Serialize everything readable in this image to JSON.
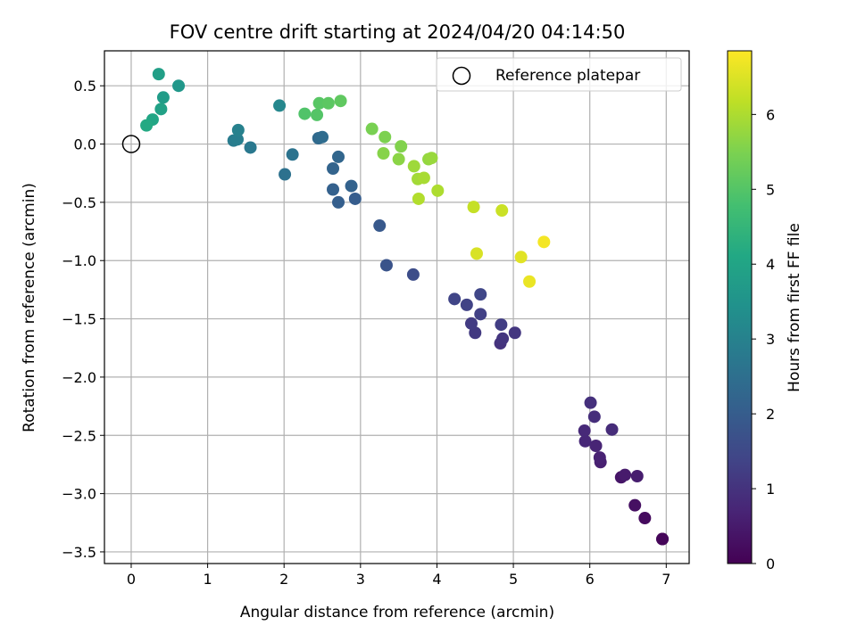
{
  "chart_data": {
    "type": "scatter",
    "title": "FOV centre drift starting at 2024/04/20 04:14:50",
    "xlabel": "Angular distance from reference (arcmin)",
    "ylabel": "Rotation from reference (arcmin)",
    "xlim": [
      -0.35,
      7.3
    ],
    "ylim": [
      -3.6,
      0.8
    ],
    "xticks": [
      0,
      1,
      2,
      3,
      4,
      5,
      6,
      7
    ],
    "yticks": [
      -3.5,
      -3.0,
      -2.5,
      -2.0,
      -1.5,
      -1.0,
      -0.5,
      0.0,
      0.5
    ],
    "grid": true,
    "legend": {
      "position": "top-right",
      "entries": [
        "Reference platepar"
      ]
    },
    "reference_point": {
      "x": 0,
      "y": 0,
      "label": "Reference platepar"
    },
    "colorbar": {
      "label": "Hours from first FF file",
      "range": [
        0,
        6.85
      ],
      "ticks": [
        0,
        1,
        2,
        3,
        4,
        5,
        6
      ],
      "colormap": "viridis"
    },
    "points": [
      {
        "x": 6.95,
        "y": -3.39,
        "h": 0.05
      },
      {
        "x": 6.95,
        "y": -3.39,
        "h": 0.1
      },
      {
        "x": 6.72,
        "y": -3.21,
        "h": 0.2
      },
      {
        "x": 6.59,
        "y": -3.1,
        "h": 0.3
      },
      {
        "x": 6.41,
        "y": -2.86,
        "h": 0.4
      },
      {
        "x": 6.46,
        "y": -2.84,
        "h": 0.5
      },
      {
        "x": 6.62,
        "y": -2.85,
        "h": 0.55
      },
      {
        "x": 6.14,
        "y": -2.73,
        "h": 0.6
      },
      {
        "x": 6.13,
        "y": -2.69,
        "h": 0.65
      },
      {
        "x": 6.08,
        "y": -2.59,
        "h": 0.7
      },
      {
        "x": 5.94,
        "y": -2.55,
        "h": 0.75
      },
      {
        "x": 5.93,
        "y": -2.46,
        "h": 0.8
      },
      {
        "x": 6.29,
        "y": -2.45,
        "h": 0.85
      },
      {
        "x": 6.06,
        "y": -2.34,
        "h": 0.9
      },
      {
        "x": 6.01,
        "y": -2.22,
        "h": 0.95
      },
      {
        "x": 4.83,
        "y": -1.71,
        "h": 1.0
      },
      {
        "x": 4.86,
        "y": -1.67,
        "h": 1.05
      },
      {
        "x": 5.02,
        "y": -1.62,
        "h": 1.1
      },
      {
        "x": 4.5,
        "y": -1.62,
        "h": 1.15
      },
      {
        "x": 4.45,
        "y": -1.54,
        "h": 1.2
      },
      {
        "x": 4.84,
        "y": -1.55,
        "h": 1.25
      },
      {
        "x": 4.57,
        "y": -1.46,
        "h": 1.3
      },
      {
        "x": 4.39,
        "y": -1.38,
        "h": 1.35
      },
      {
        "x": 4.23,
        "y": -1.33,
        "h": 1.4
      },
      {
        "x": 4.57,
        "y": -1.29,
        "h": 1.45
      },
      {
        "x": 3.69,
        "y": -1.12,
        "h": 1.6
      },
      {
        "x": 3.34,
        "y": -1.04,
        "h": 1.75
      },
      {
        "x": 3.25,
        "y": -0.7,
        "h": 1.9
      },
      {
        "x": 2.93,
        "y": -0.47,
        "h": 2.0
      },
      {
        "x": 2.71,
        "y": -0.5,
        "h": 2.05
      },
      {
        "x": 2.64,
        "y": -0.39,
        "h": 2.1
      },
      {
        "x": 2.88,
        "y": -0.36,
        "h": 2.15
      },
      {
        "x": 2.64,
        "y": -0.21,
        "h": 2.2
      },
      {
        "x": 2.71,
        "y": -0.11,
        "h": 2.25
      },
      {
        "x": 2.45,
        "y": 0.05,
        "h": 2.35
      },
      {
        "x": 2.5,
        "y": 0.06,
        "h": 2.4
      },
      {
        "x": 2.01,
        "y": -0.26,
        "h": 2.55
      },
      {
        "x": 2.11,
        "y": -0.09,
        "h": 2.6
      },
      {
        "x": 1.56,
        "y": -0.03,
        "h": 2.75
      },
      {
        "x": 1.34,
        "y": 0.03,
        "h": 2.85
      },
      {
        "x": 1.39,
        "y": 0.04,
        "h": 2.9
      },
      {
        "x": 1.4,
        "y": 0.12,
        "h": 3.0
      },
      {
        "x": 1.94,
        "y": 0.33,
        "h": 3.15
      },
      {
        "x": 0.62,
        "y": 0.5,
        "h": 3.6
      },
      {
        "x": 0.42,
        "y": 0.4,
        "h": 3.75
      },
      {
        "x": 0.36,
        "y": 0.6,
        "h": 3.85
      },
      {
        "x": 0.39,
        "y": 0.3,
        "h": 3.9
      },
      {
        "x": 0.28,
        "y": 0.21,
        "h": 4.05
      },
      {
        "x": 0.2,
        "y": 0.16,
        "h": 4.15
      },
      {
        "x": 2.27,
        "y": 0.26,
        "h": 4.95
      },
      {
        "x": 2.43,
        "y": 0.25,
        "h": 5.0
      },
      {
        "x": 2.46,
        "y": 0.35,
        "h": 5.05
      },
      {
        "x": 2.58,
        "y": 0.35,
        "h": 5.1
      },
      {
        "x": 2.74,
        "y": 0.37,
        "h": 5.15
      },
      {
        "x": 3.15,
        "y": 0.13,
        "h": 5.45
      },
      {
        "x": 3.32,
        "y": 0.06,
        "h": 5.5
      },
      {
        "x": 3.53,
        "y": -0.02,
        "h": 5.55
      },
      {
        "x": 3.3,
        "y": -0.08,
        "h": 5.6
      },
      {
        "x": 3.5,
        "y": -0.13,
        "h": 5.65
      },
      {
        "x": 3.89,
        "y": -0.13,
        "h": 5.75
      },
      {
        "x": 3.93,
        "y": -0.12,
        "h": 5.8
      },
      {
        "x": 3.7,
        "y": -0.19,
        "h": 5.85
      },
      {
        "x": 3.75,
        "y": -0.3,
        "h": 5.9
      },
      {
        "x": 3.83,
        "y": -0.29,
        "h": 5.95
      },
      {
        "x": 4.01,
        "y": -0.4,
        "h": 6.0
      },
      {
        "x": 3.76,
        "y": -0.47,
        "h": 6.05
      },
      {
        "x": 4.48,
        "y": -0.54,
        "h": 6.25
      },
      {
        "x": 4.85,
        "y": -0.57,
        "h": 6.3
      },
      {
        "x": 4.52,
        "y": -0.94,
        "h": 6.45
      },
      {
        "x": 5.1,
        "y": -0.97,
        "h": 6.55
      },
      {
        "x": 5.21,
        "y": -1.18,
        "h": 6.65
      },
      {
        "x": 5.4,
        "y": -0.84,
        "h": 6.75
      }
    ]
  }
}
